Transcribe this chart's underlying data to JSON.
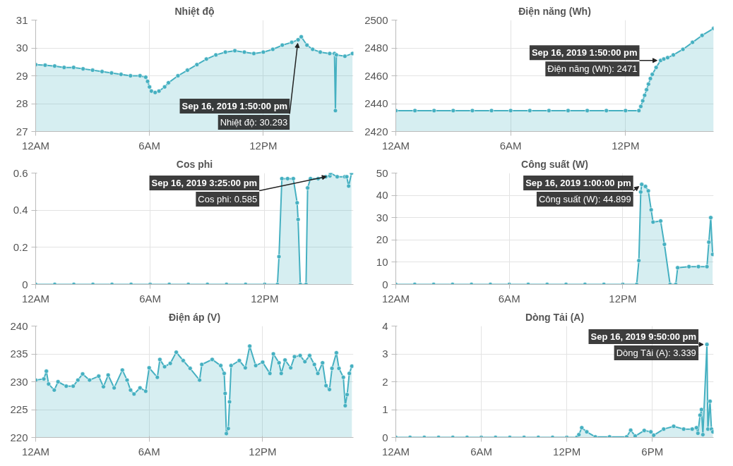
{
  "chart_data": [
    {
      "type": "area",
      "title": "Nhiệt độ",
      "color": "#45b0c1",
      "marker": "circle",
      "grid": true,
      "xlim": [
        "2019-09-16T00:00",
        "2019-09-16T16:45"
      ],
      "xticks": [
        {
          "value": "2019-09-16T00:00",
          "label": "12AM"
        },
        {
          "value": "2019-09-16T06:00",
          "label": "6AM"
        },
        {
          "value": "2019-09-16T12:00",
          "label": "12PM"
        }
      ],
      "ylim": [
        27,
        31
      ],
      "yticks": [
        27,
        28,
        29,
        30,
        31
      ],
      "x": [
        "2019-09-16T00:00",
        "2019-09-16T00:30",
        "2019-09-16T01:00",
        "2019-09-16T01:30",
        "2019-09-16T02:00",
        "2019-09-16T02:30",
        "2019-09-16T03:00",
        "2019-09-16T03:30",
        "2019-09-16T04:00",
        "2019-09-16T04:30",
        "2019-09-16T05:00",
        "2019-09-16T05:30",
        "2019-09-16T05:48",
        "2019-09-16T05:54",
        "2019-09-16T06:00",
        "2019-09-16T06:06",
        "2019-09-16T06:18",
        "2019-09-16T06:30",
        "2019-09-16T06:48",
        "2019-09-16T07:00",
        "2019-09-16T07:30",
        "2019-09-16T08:00",
        "2019-09-16T08:30",
        "2019-09-16T09:00",
        "2019-09-16T09:30",
        "2019-09-16T10:00",
        "2019-09-16T10:30",
        "2019-09-16T11:00",
        "2019-09-16T11:30",
        "2019-09-16T12:00",
        "2019-09-16T12:30",
        "2019-09-16T13:00",
        "2019-09-16T13:30",
        "2019-09-16T13:50",
        "2019-09-16T14:00",
        "2019-09-16T14:18",
        "2019-09-16T14:36",
        "2019-09-16T15:00",
        "2019-09-16T15:30",
        "2019-09-16T15:45",
        "2019-09-16T15:48",
        "2019-09-16T15:51",
        "2019-09-16T16:18",
        "2019-09-16T16:42"
      ],
      "values": [
        29.4,
        29.38,
        29.35,
        29.3,
        29.3,
        29.25,
        29.2,
        29.15,
        29.1,
        29.05,
        29.0,
        29.0,
        28.95,
        28.8,
        28.6,
        28.45,
        28.4,
        28.45,
        28.6,
        28.75,
        29.0,
        29.2,
        29.4,
        29.6,
        29.75,
        29.85,
        29.9,
        29.85,
        29.8,
        29.85,
        29.95,
        30.1,
        30.2,
        30.293,
        30.4,
        30.1,
        29.95,
        29.85,
        29.8,
        29.8,
        27.75,
        29.75,
        29.7,
        29.8
      ],
      "annotations": [
        {
          "text": "Sep 16, 2019 1:50:00 pm",
          "x": "2019-09-16T13:50",
          "y": 30.293
        },
        {
          "text": "Nhiệt độ: 30.293",
          "x": "2019-09-16T13:50",
          "y": 30.293
        }
      ]
    },
    {
      "type": "area",
      "title": "Điện năng (Wh)",
      "color": "#45b0c1",
      "marker": "circle",
      "grid": true,
      "xlim": [
        "2019-09-16T00:00",
        "2019-09-16T16:36"
      ],
      "xticks": [
        {
          "value": "2019-09-16T00:00",
          "label": "12AM"
        },
        {
          "value": "2019-09-16T06:00",
          "label": "6AM"
        },
        {
          "value": "2019-09-16T12:00",
          "label": "12PM"
        }
      ],
      "ylim": [
        2420,
        2500
      ],
      "yticks": [
        2420,
        2440,
        2460,
        2480,
        2500
      ],
      "x": [
        "2019-09-16T00:00",
        "2019-09-16T01:00",
        "2019-09-16T02:00",
        "2019-09-16T03:00",
        "2019-09-16T04:00",
        "2019-09-16T05:00",
        "2019-09-16T06:00",
        "2019-09-16T07:00",
        "2019-09-16T08:00",
        "2019-09-16T09:00",
        "2019-09-16T10:00",
        "2019-09-16T11:00",
        "2019-09-16T12:00",
        "2019-09-16T12:42",
        "2019-09-16T12:48",
        "2019-09-16T12:54",
        "2019-09-16T13:00",
        "2019-09-16T13:06",
        "2019-09-16T13:12",
        "2019-09-16T13:18",
        "2019-09-16T13:24",
        "2019-09-16T13:36",
        "2019-09-16T13:50",
        "2019-09-16T14:00",
        "2019-09-16T14:12",
        "2019-09-16T14:30",
        "2019-09-16T15:00",
        "2019-09-16T15:30",
        "2019-09-16T16:00",
        "2019-09-16T16:36"
      ],
      "values": [
        2435,
        2435,
        2435,
        2435,
        2435,
        2435,
        2435,
        2435,
        2435,
        2435,
        2435,
        2435,
        2435,
        2435,
        2438,
        2442,
        2446,
        2450,
        2454,
        2458,
        2461,
        2466,
        2471,
        2472,
        2473,
        2475,
        2479,
        2484,
        2489,
        2494
      ],
      "annotations": [
        {
          "text": "Sep 16, 2019 1:50:00 pm",
          "x": "2019-09-16T13:50",
          "y": 2471
        },
        {
          "text": "Điện năng (Wh): 2471",
          "x": "2019-09-16T13:50",
          "y": 2471
        }
      ]
    },
    {
      "type": "area",
      "title": "Cos phi",
      "color": "#45b0c1",
      "marker": "circle",
      "grid": true,
      "xlim": [
        "2019-09-16T00:00",
        "2019-09-16T16:39"
      ],
      "xticks": [
        {
          "value": "2019-09-16T00:00",
          "label": "12AM"
        },
        {
          "value": "2019-09-16T06:00",
          "label": "6AM"
        },
        {
          "value": "2019-09-16T12:00",
          "label": "12PM"
        }
      ],
      "ylim": [
        0,
        0.6
      ],
      "yticks": [
        0,
        0.2,
        0.4,
        0.6
      ],
      "x": [
        "2019-09-16T00:00",
        "2019-09-16T01:00",
        "2019-09-16T02:00",
        "2019-09-16T03:00",
        "2019-09-16T04:00",
        "2019-09-16T05:00",
        "2019-09-16T06:00",
        "2019-09-16T07:00",
        "2019-09-16T08:00",
        "2019-09-16T09:00",
        "2019-09-16T10:00",
        "2019-09-16T11:00",
        "2019-09-16T12:00",
        "2019-09-16T12:40",
        "2019-09-16T12:45",
        "2019-09-16T12:54",
        "2019-09-16T13:12",
        "2019-09-16T13:30",
        "2019-09-16T13:42",
        "2019-09-16T13:45",
        "2019-09-16T13:52",
        "2019-09-16T14:10",
        "2019-09-16T14:15",
        "2019-09-16T14:24",
        "2019-09-16T14:48",
        "2019-09-16T15:12",
        "2019-09-16T15:25",
        "2019-09-16T15:27",
        "2019-09-16T15:48",
        "2019-09-16T16:12",
        "2019-09-16T16:18",
        "2019-09-16T16:24",
        "2019-09-16T16:33"
      ],
      "values": [
        0,
        0,
        0,
        0,
        0,
        0,
        0,
        0,
        0,
        0,
        0,
        0,
        0,
        0,
        0.15,
        0.57,
        0.57,
        0.57,
        0.44,
        0.35,
        0,
        0,
        0.52,
        0.57,
        0.57,
        0.58,
        0.585,
        0.6,
        0.58,
        0.58,
        0.58,
        0.53,
        0.6
      ],
      "annotations": [
        {
          "text": "Sep 16, 2019 3:25:00 pm",
          "x": "2019-09-16T15:25",
          "y": 0.585
        },
        {
          "text": "Cos phi: 0.585",
          "x": "2019-09-16T15:25",
          "y": 0.585
        }
      ]
    },
    {
      "type": "area",
      "title": "Công suất (W)",
      "color": "#45b0c1",
      "marker": "circle",
      "grid": true,
      "xlim": [
        "2019-09-16T00:00",
        "2019-09-16T16:48"
      ],
      "xticks": [
        {
          "value": "2019-09-16T00:00",
          "label": "12AM"
        },
        {
          "value": "2019-09-16T06:00",
          "label": "6AM"
        },
        {
          "value": "2019-09-16T12:00",
          "label": "12PM"
        }
      ],
      "ylim": [
        0,
        50
      ],
      "yticks": [
        0,
        10,
        20,
        30,
        40,
        50
      ],
      "x": [
        "2019-09-16T00:00",
        "2019-09-16T01:00",
        "2019-09-16T02:00",
        "2019-09-16T03:00",
        "2019-09-16T04:00",
        "2019-09-16T05:00",
        "2019-09-16T06:00",
        "2019-09-16T07:00",
        "2019-09-16T08:00",
        "2019-09-16T09:00",
        "2019-09-16T10:00",
        "2019-09-16T11:00",
        "2019-09-16T12:00",
        "2019-09-16T12:44",
        "2019-09-16T12:51",
        "2019-09-16T12:57",
        "2019-09-16T13:00",
        "2019-09-16T13:12",
        "2019-09-16T13:21",
        "2019-09-16T13:30",
        "2019-09-16T13:36",
        "2019-09-16T14:00",
        "2019-09-16T14:12",
        "2019-09-16T14:30",
        "2019-09-16T14:48",
        "2019-09-16T14:54",
        "2019-09-16T15:30",
        "2019-09-16T16:00",
        "2019-09-16T16:27",
        "2019-09-16T16:33",
        "2019-09-16T16:39",
        "2019-09-16T16:45"
      ],
      "values": [
        0,
        0,
        0,
        0,
        0,
        0,
        0,
        0,
        0,
        0,
        0,
        0,
        0,
        0,
        10.7,
        41.5,
        44.899,
        44,
        42,
        33.5,
        28,
        28.5,
        18,
        0,
        0,
        7.5,
        8,
        8,
        8,
        19,
        30,
        13.5
      ],
      "annotations": [
        {
          "text": "Sep 16, 2019 1:00:00 pm",
          "x": "2019-09-16T13:00",
          "y": 44.899
        },
        {
          "text": "Công suất (W): 44.899",
          "x": "2019-09-16T13:00",
          "y": 44.899
        }
      ]
    },
    {
      "type": "area",
      "title": "Điện áp (V)",
      "color": "#45b0c1",
      "marker": "circle",
      "grid": true,
      "xlim": [
        "2019-09-16T00:00",
        "2019-09-16T16:48"
      ],
      "xticks": [
        {
          "value": "2019-09-16T00:00",
          "label": "12AM"
        },
        {
          "value": "2019-09-16T06:00",
          "label": "6AM"
        },
        {
          "value": "2019-09-16T12:00",
          "label": "12PM"
        }
      ],
      "ylim": [
        220,
        240
      ],
      "yticks": [
        220,
        225,
        230,
        235,
        240
      ],
      "x": [
        "2019-09-16T00:00",
        "2019-09-16T00:26",
        "2019-09-16T00:34",
        "2019-09-16T00:41",
        "2019-09-16T00:59",
        "2019-09-16T01:11",
        "2019-09-16T01:37",
        "2019-09-16T01:59",
        "2019-09-16T02:14",
        "2019-09-16T02:29",
        "2019-09-16T02:51",
        "2019-09-16T03:20",
        "2019-09-16T03:35",
        "2019-09-16T03:50",
        "2019-09-16T04:09",
        "2019-09-16T04:35",
        "2019-09-16T04:50",
        "2019-09-16T05:01",
        "2019-09-16T05:12",
        "2019-09-16T05:31",
        "2019-09-16T05:49",
        "2019-09-16T06:00",
        "2019-09-16T06:26",
        "2019-09-16T06:34",
        "2019-09-16T06:49",
        "2019-09-16T07:07",
        "2019-09-16T07:26",
        "2019-09-16T07:48",
        "2019-09-16T08:10",
        "2019-09-16T08:40",
        "2019-09-16T08:47",
        "2019-09-16T09:20",
        "2019-09-16T09:47",
        "2019-09-16T09:58",
        "2019-09-16T10:01",
        "2019-09-16T10:05",
        "2019-09-16T10:11",
        "2019-09-16T10:15",
        "2019-09-16T10:20",
        "2019-09-16T10:46",
        "2019-09-16T11:05",
        "2019-09-16T11:19",
        "2019-09-16T11:38",
        "2019-09-16T12:00",
        "2019-09-16T12:23",
        "2019-09-16T12:34",
        "2019-09-16T12:52",
        "2019-09-16T12:59",
        "2019-09-16T13:11",
        "2019-09-16T13:29",
        "2019-09-16T13:41",
        "2019-09-16T13:59",
        "2019-09-16T14:14",
        "2019-09-16T14:29",
        "2019-09-16T14:44",
        "2019-09-16T14:55",
        "2019-09-16T15:10",
        "2019-09-16T15:21",
        "2019-09-16T15:32",
        "2019-09-16T15:40",
        "2019-09-16T15:54",
        "2019-09-16T16:02",
        "2019-09-16T16:16",
        "2019-09-16T16:22",
        "2019-09-16T16:28",
        "2019-09-16T16:35",
        "2019-09-16T16:43"
      ],
      "values": [
        230.3,
        230.5,
        231.9,
        229.6,
        228.5,
        230.0,
        229.2,
        229.2,
        230.3,
        231.4,
        230.3,
        231.0,
        229.1,
        231.2,
        228.9,
        232.1,
        230.3,
        228.5,
        227.8,
        228.9,
        228.3,
        232.5,
        230.8,
        234.0,
        232.7,
        233.3,
        235.3,
        233.8,
        232.4,
        230.3,
        233.1,
        234.0,
        232.9,
        231.5,
        227.9,
        220.7,
        221.6,
        226.4,
        232.9,
        233.8,
        232.5,
        236.4,
        232.9,
        233.5,
        231.5,
        235.0,
        233.4,
        231.5,
        233.9,
        232.5,
        234.5,
        234.7,
        233.6,
        234.7,
        233.1,
        231.5,
        233.4,
        229.3,
        228.6,
        232.4,
        235.2,
        232.4,
        230.8,
        225.7,
        227.7,
        231.5,
        232.8
      ]
    },
    {
      "type": "area",
      "title": "Dòng Tải (A)",
      "color": "#45b0c1",
      "marker": "circle",
      "grid": true,
      "xlim": [
        "2019-09-16T00:00",
        "2019-09-16T22:18"
      ],
      "xticks": [
        {
          "value": "2019-09-16T00:00",
          "label": "12AM"
        },
        {
          "value": "2019-09-16T06:00",
          "label": "6AM"
        },
        {
          "value": "2019-09-16T12:00",
          "label": "12PM"
        },
        {
          "value": "2019-09-16T18:00",
          "label": "6PM"
        }
      ],
      "ylim": [
        0,
        4
      ],
      "yticks": [
        0,
        1,
        2,
        3,
        4
      ],
      "x": [
        "2019-09-16T00:00",
        "2019-09-16T01:00",
        "2019-09-16T02:00",
        "2019-09-16T03:00",
        "2019-09-16T04:00",
        "2019-09-16T05:00",
        "2019-09-16T06:00",
        "2019-09-16T07:00",
        "2019-09-16T08:00",
        "2019-09-16T09:00",
        "2019-09-16T10:00",
        "2019-09-16T11:00",
        "2019-09-16T12:00",
        "2019-09-16T12:42",
        "2019-09-16T12:51",
        "2019-09-16T13:03",
        "2019-09-16T13:24",
        "2019-09-16T14:00",
        "2019-09-16T15:00",
        "2019-09-16T16:12",
        "2019-09-16T16:29",
        "2019-09-16T16:48",
        "2019-09-16T17:26",
        "2019-09-16T17:54",
        "2019-09-16T18:06",
        "2019-09-16T18:48",
        "2019-09-16T19:30",
        "2019-09-16T20:12",
        "2019-09-16T20:48",
        "2019-09-16T21:06",
        "2019-09-16T21:12",
        "2019-09-16T21:21",
        "2019-09-16T21:27",
        "2019-09-16T21:33",
        "2019-09-16T21:50",
        "2019-09-16T21:54",
        "2019-09-16T22:03",
        "2019-09-16T22:09",
        "2019-09-16T22:15"
      ],
      "values": [
        0,
        0,
        0,
        0,
        0,
        0,
        0,
        0,
        0,
        0,
        0,
        0,
        0,
        0,
        0.1,
        0.35,
        0.2,
        0.02,
        0.02,
        0.02,
        0.26,
        0.05,
        0.25,
        0.2,
        0.08,
        0.3,
        0.4,
        0.3,
        0.3,
        0.35,
        0.15,
        0.8,
        1.0,
        0.1,
        3.339,
        0.3,
        1.3,
        0.3,
        0.2
      ],
      "annotations": [
        {
          "text": "Sep 16, 2019 9:50:00 pm",
          "x": "2019-09-16T21:50",
          "y": 3.339
        },
        {
          "text": "Dòng Tải (A): 3.339",
          "x": "2019-09-16T21:50",
          "y": 3.339
        }
      ]
    }
  ]
}
